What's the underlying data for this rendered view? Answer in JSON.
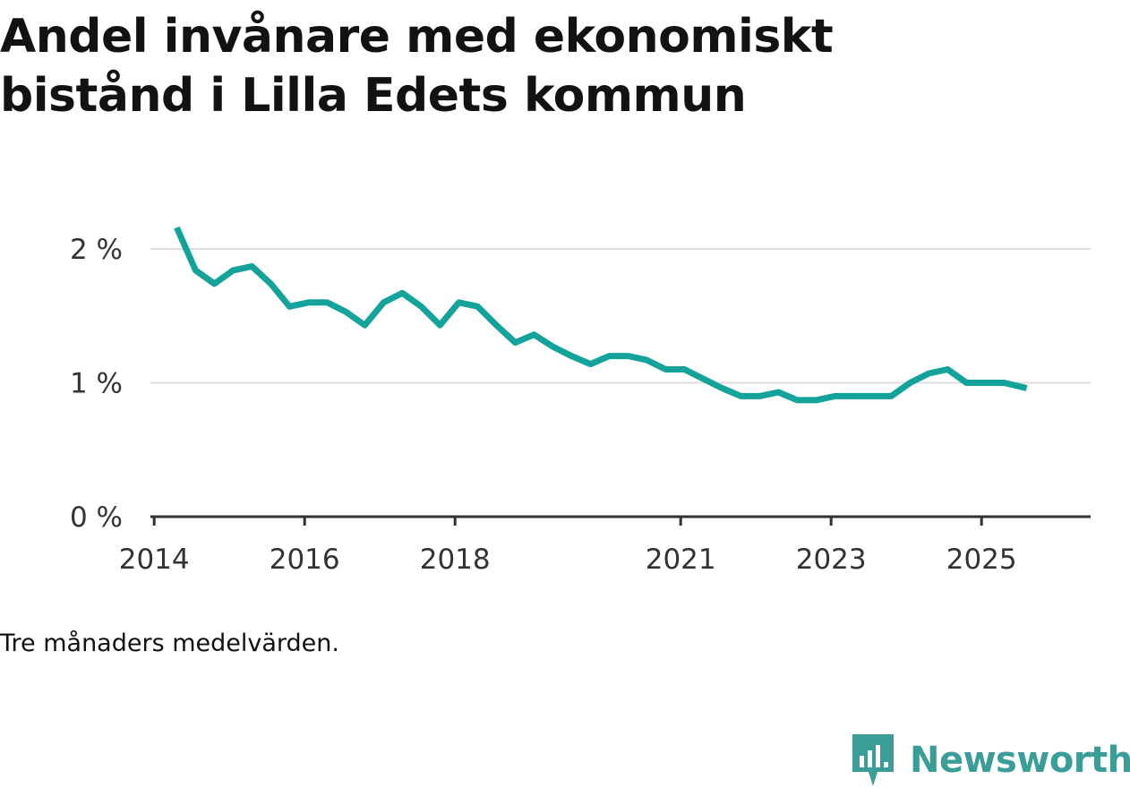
{
  "chart_data": {
    "type": "line",
    "title": "Andel invånare med ekonomiskt bistånd i Lilla Edets kommun",
    "note": "Tre månaders medelvärden.",
    "xlabel": "",
    "ylabel": "",
    "ylim": [
      0,
      2.2
    ],
    "xlim": [
      2013.95,
      2026.45
    ],
    "y_ticks": [
      {
        "value": 0,
        "label": "0 %"
      },
      {
        "value": 1,
        "label": "1 %"
      },
      {
        "value": 2,
        "label": "2 %"
      }
    ],
    "x_ticks": [
      {
        "value": 2014,
        "label": "2014"
      },
      {
        "value": 2016,
        "label": "2016"
      },
      {
        "value": 2018,
        "label": "2018"
      },
      {
        "value": 2021,
        "label": "2021"
      },
      {
        "value": 2023,
        "label": "2023"
      },
      {
        "value": 2025,
        "label": "2025"
      }
    ],
    "series": [
      {
        "name": "Andel invånare med ekonomiskt bistånd",
        "color": "#13a39a",
        "x": [
          2014.3,
          2014.55,
          2014.8,
          2015.05,
          2015.3,
          2015.55,
          2015.8,
          2016.05,
          2016.3,
          2016.55,
          2016.8,
          2017.05,
          2017.3,
          2017.55,
          2017.8,
          2018.05,
          2018.3,
          2018.55,
          2018.8,
          2019.05,
          2019.3,
          2019.55,
          2019.8,
          2020.05,
          2020.3,
          2020.55,
          2020.8,
          2021.05,
          2021.3,
          2021.55,
          2021.8,
          2022.05,
          2022.3,
          2022.55,
          2022.8,
          2023.05,
          2023.3,
          2023.55,
          2023.8,
          2024.05,
          2024.3,
          2024.55,
          2024.8,
          2025.05,
          2025.3,
          2025.6
        ],
        "values": [
          2.16,
          1.84,
          1.74,
          1.84,
          1.87,
          1.74,
          1.57,
          1.6,
          1.6,
          1.53,
          1.43,
          1.6,
          1.67,
          1.57,
          1.43,
          1.6,
          1.57,
          1.43,
          1.3,
          1.36,
          1.27,
          1.2,
          1.14,
          1.2,
          1.2,
          1.17,
          1.1,
          1.1,
          1.03,
          0.96,
          0.9,
          0.9,
          0.93,
          0.87,
          0.87,
          0.9,
          0.9,
          0.9,
          0.9,
          1.0,
          1.07,
          1.1,
          1.0,
          1.0,
          1.0,
          0.96
        ]
      }
    ]
  },
  "brand": {
    "name": "Newsworthy",
    "color": "#3a9d98",
    "icon": "newsworthy-chart-icon"
  }
}
